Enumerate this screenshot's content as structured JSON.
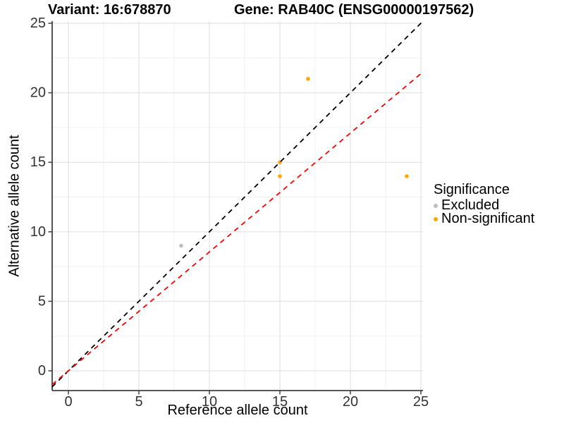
{
  "chart_data": {
    "type": "scatter",
    "title_left": "Variant: 16:678870",
    "title_right": "Gene: RAB40C (ENSG00000197562)",
    "xlabel": "Reference allele count",
    "ylabel": "Alternative allele count",
    "xlim": [
      -1.15,
      25.15
    ],
    "ylim": [
      -1.42,
      25.15
    ],
    "x_ticks": [
      0,
      5,
      10,
      15,
      20,
      25
    ],
    "y_ticks": [
      0,
      5,
      10,
      15,
      20,
      25
    ],
    "minor_ticks": [
      2.5,
      7.5,
      12.5,
      17.5,
      22.5
    ],
    "grid": true,
    "legend_position": "right",
    "series": [
      {
        "name": "Excluded",
        "color": "#bebebe",
        "points": [
          [
            8,
            9
          ]
        ]
      },
      {
        "name": "Non-significant",
        "color": "#ffa500",
        "points": [
          [
            15,
            14
          ],
          [
            15,
            15
          ],
          [
            17,
            21
          ],
          [
            24,
            14
          ]
        ]
      }
    ],
    "lines": [
      {
        "name": "identity-line",
        "slope": 1,
        "intercept": 0,
        "color": "#000000",
        "style": "dashed"
      },
      {
        "name": "fit-line",
        "slope": 0.855,
        "intercept": 0,
        "color": "#ff0000",
        "style": "dashed"
      }
    ],
    "legend": {
      "title": "Significance",
      "entries": [
        {
          "label": "Excluded",
          "color": "#bebebe"
        },
        {
          "label": "Non-significant",
          "color": "#ffa500"
        }
      ]
    },
    "colors": {
      "grid_major": "#e3e3e3",
      "grid_minor": "#f0f0f0",
      "axis_line": "#404040",
      "tick_label": "#333333"
    }
  }
}
